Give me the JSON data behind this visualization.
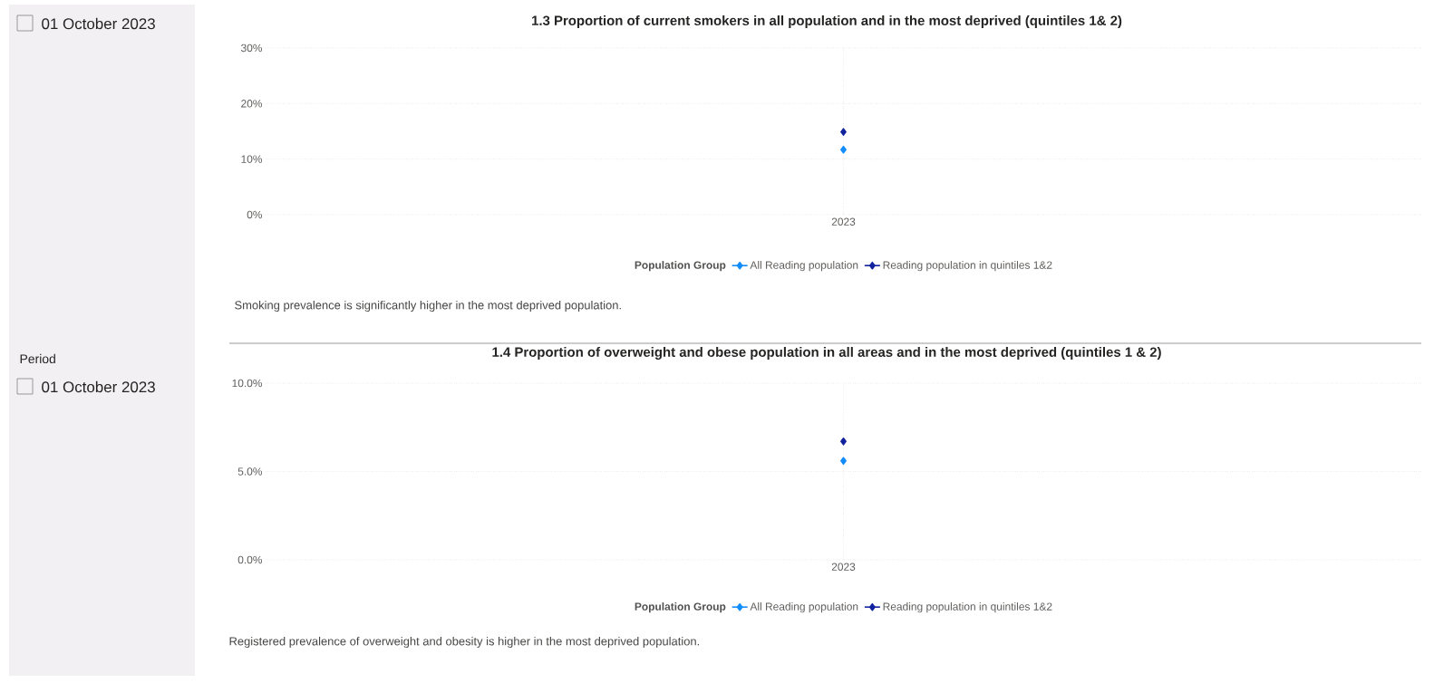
{
  "chart_data": [
    {
      "type": "other",
      "annotations": [
        "01 October 2023"
      ]
    },
    {
      "type": "line",
      "title": "1.3 Proportion of current smokers in all population and in the most deprived (quintiles 1& 2)",
      "legend_title": "Population Group",
      "categories": [
        "2023"
      ],
      "series": [
        {
          "name": "All Reading population",
          "color": "#118dff",
          "values": [
            11.7
          ]
        },
        {
          "name": "Reading population in quintiles 1&2",
          "color": "#12239e",
          "values": [
            14.9
          ]
        }
      ],
      "ylim": [
        0,
        30
      ],
      "yticks": [
        {
          "value": 0,
          "label": "0%"
        },
        {
          "value": 10,
          "label": "10%"
        },
        {
          "value": 20,
          "label": "20%"
        },
        {
          "value": 30,
          "label": "30%"
        }
      ],
      "grid": true,
      "legend": "bottom",
      "marker": "diamond",
      "line_style": "solid",
      "annotations": [
        "Smoking prevalence is significantly higher in the most deprived population."
      ]
    },
    {
      "type": "other",
      "title": "Period",
      "annotations": [
        "01 October 2023"
      ]
    },
    {
      "type": "line",
      "title": "1.4 Proportion of overweight and obese population in all areas and in the most deprived (quintiles 1 & 2)",
      "legend_title": "Population Group",
      "categories": [
        "2023"
      ],
      "series": [
        {
          "name": "All Reading population",
          "color": "#118dff",
          "values": [
            5.6
          ]
        },
        {
          "name": "Reading population in quintiles 1&2",
          "color": "#12239e",
          "values": [
            6.7
          ]
        }
      ],
      "ylim": [
        0,
        10
      ],
      "yticks": [
        {
          "value": 0,
          "label": "0.0%"
        },
        {
          "value": 5,
          "label": "5.0%"
        },
        {
          "value": 10,
          "label": "10.0%"
        }
      ],
      "grid": true,
      "legend": "bottom",
      "marker": "diamond",
      "line_style": "solid",
      "annotations": [
        "Registered prevalence of overweight and obesity is higher in the most deprived population."
      ]
    }
  ]
}
